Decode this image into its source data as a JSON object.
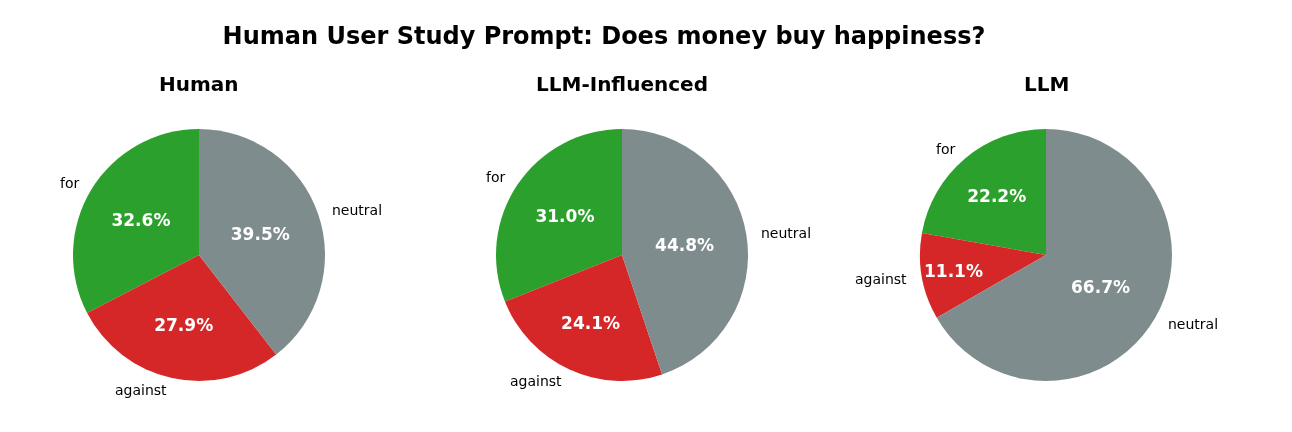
{
  "chart_data": [
    {
      "type": "pie",
      "title": "Human",
      "annotations": [
        "Human User Study Prompt: Does money buy happiness?"
      ],
      "categories": [
        "for",
        "against",
        "neutral"
      ],
      "values": [
        32.6,
        27.9,
        39.5
      ],
      "colors": [
        "#2ca02c",
        "#d62728",
        "#7f8c8d"
      ],
      "value_labels": [
        "32.6%",
        "27.9%",
        "39.5%"
      ],
      "legend": false
    },
    {
      "type": "pie",
      "title": "LLM-Influenced",
      "categories": [
        "for",
        "against",
        "neutral"
      ],
      "values": [
        31.0,
        24.1,
        44.8
      ],
      "colors": [
        "#2ca02c",
        "#d62728",
        "#7f8c8d"
      ],
      "value_labels": [
        "31.0%",
        "24.1%",
        "44.8%"
      ],
      "legend": false
    },
    {
      "type": "pie",
      "title": "LLM",
      "categories": [
        "for",
        "against",
        "neutral"
      ],
      "values": [
        22.2,
        11.1,
        66.7
      ],
      "colors": [
        "#2ca02c",
        "#d62728",
        "#7f8c8d"
      ],
      "value_labels": [
        "22.2%",
        "11.1%",
        "66.7%"
      ],
      "legend": false
    }
  ]
}
